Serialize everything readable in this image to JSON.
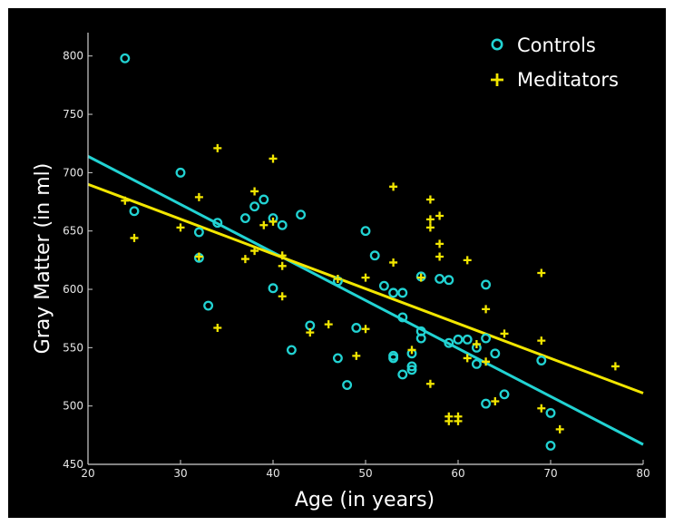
{
  "chart_data": {
    "type": "scatter",
    "xlabel": "Age (in years)",
    "ylabel": "Gray Matter (in ml)",
    "xlim": [
      20,
      80
    ],
    "ylim": [
      450,
      820
    ],
    "x_ticks": [
      20,
      30,
      40,
      50,
      60,
      70,
      80
    ],
    "y_ticks": [
      450,
      500,
      550,
      600,
      650,
      700,
      750,
      800
    ],
    "grid": false,
    "legend_position": "top-right",
    "background_color": "#000000",
    "series": [
      {
        "name": "Controls",
        "marker": "circle",
        "color": "#22d3d3",
        "points": [
          [
            24,
            798
          ],
          [
            25,
            667
          ],
          [
            30,
            700
          ],
          [
            32,
            649
          ],
          [
            32,
            627
          ],
          [
            33,
            586
          ],
          [
            34,
            657
          ],
          [
            37,
            661
          ],
          [
            38,
            671
          ],
          [
            39,
            677
          ],
          [
            40,
            661
          ],
          [
            40,
            601
          ],
          [
            41,
            655
          ],
          [
            42,
            548
          ],
          [
            43,
            664
          ],
          [
            44,
            569
          ],
          [
            47,
            607
          ],
          [
            47,
            541
          ],
          [
            48,
            518
          ],
          [
            49,
            567
          ],
          [
            50,
            650
          ],
          [
            51,
            629
          ],
          [
            52,
            603
          ],
          [
            53,
            597
          ],
          [
            53,
            543
          ],
          [
            53,
            541
          ],
          [
            54,
            597
          ],
          [
            54,
            576
          ],
          [
            54,
            527
          ],
          [
            55,
            545
          ],
          [
            55,
            534
          ],
          [
            55,
            531
          ],
          [
            56,
            611
          ],
          [
            56,
            564
          ],
          [
            56,
            558
          ],
          [
            58,
            609
          ],
          [
            59,
            608
          ],
          [
            59,
            554
          ],
          [
            60,
            557
          ],
          [
            61,
            557
          ],
          [
            62,
            550
          ],
          [
            62,
            536
          ],
          [
            63,
            604
          ],
          [
            63,
            558
          ],
          [
            63,
            502
          ],
          [
            64,
            545
          ],
          [
            65,
            510
          ],
          [
            69,
            539
          ],
          [
            70,
            494
          ],
          [
            70,
            466
          ]
        ]
      },
      {
        "name": "Meditators",
        "marker": "plus",
        "color": "#f2e600",
        "points": [
          [
            24,
            676
          ],
          [
            25,
            644
          ],
          [
            30,
            653
          ],
          [
            32,
            679
          ],
          [
            32,
            628
          ],
          [
            34,
            721
          ],
          [
            34,
            567
          ],
          [
            37,
            626
          ],
          [
            38,
            684
          ],
          [
            38,
            633
          ],
          [
            39,
            655
          ],
          [
            40,
            712
          ],
          [
            40,
            658
          ],
          [
            41,
            629
          ],
          [
            41,
            620
          ],
          [
            41,
            594
          ],
          [
            44,
            563
          ],
          [
            46,
            570
          ],
          [
            47,
            609
          ],
          [
            49,
            543
          ],
          [
            50,
            610
          ],
          [
            50,
            566
          ],
          [
            53,
            688
          ],
          [
            53,
            623
          ],
          [
            55,
            548
          ],
          [
            56,
            610
          ],
          [
            57,
            677
          ],
          [
            57,
            660
          ],
          [
            57,
            653
          ],
          [
            57,
            519
          ],
          [
            58,
            663
          ],
          [
            58,
            639
          ],
          [
            58,
            628
          ],
          [
            59,
            491
          ],
          [
            59,
            487
          ],
          [
            60,
            491
          ],
          [
            60,
            487
          ],
          [
            61,
            625
          ],
          [
            61,
            541
          ],
          [
            62,
            553
          ],
          [
            63,
            583
          ],
          [
            63,
            538
          ],
          [
            64,
            504
          ],
          [
            65,
            562
          ],
          [
            69,
            614
          ],
          [
            69,
            556
          ],
          [
            69,
            498
          ],
          [
            71,
            480
          ],
          [
            77,
            534
          ]
        ]
      }
    ],
    "trend_lines": [
      {
        "series": "Controls",
        "color": "#22d3d3",
        "x": [
          20,
          80
        ],
        "y": [
          714,
          467
        ]
      },
      {
        "series": "Meditators",
        "color": "#f2e600",
        "x": [
          20,
          80
        ],
        "y": [
          690,
          511
        ]
      }
    ]
  }
}
